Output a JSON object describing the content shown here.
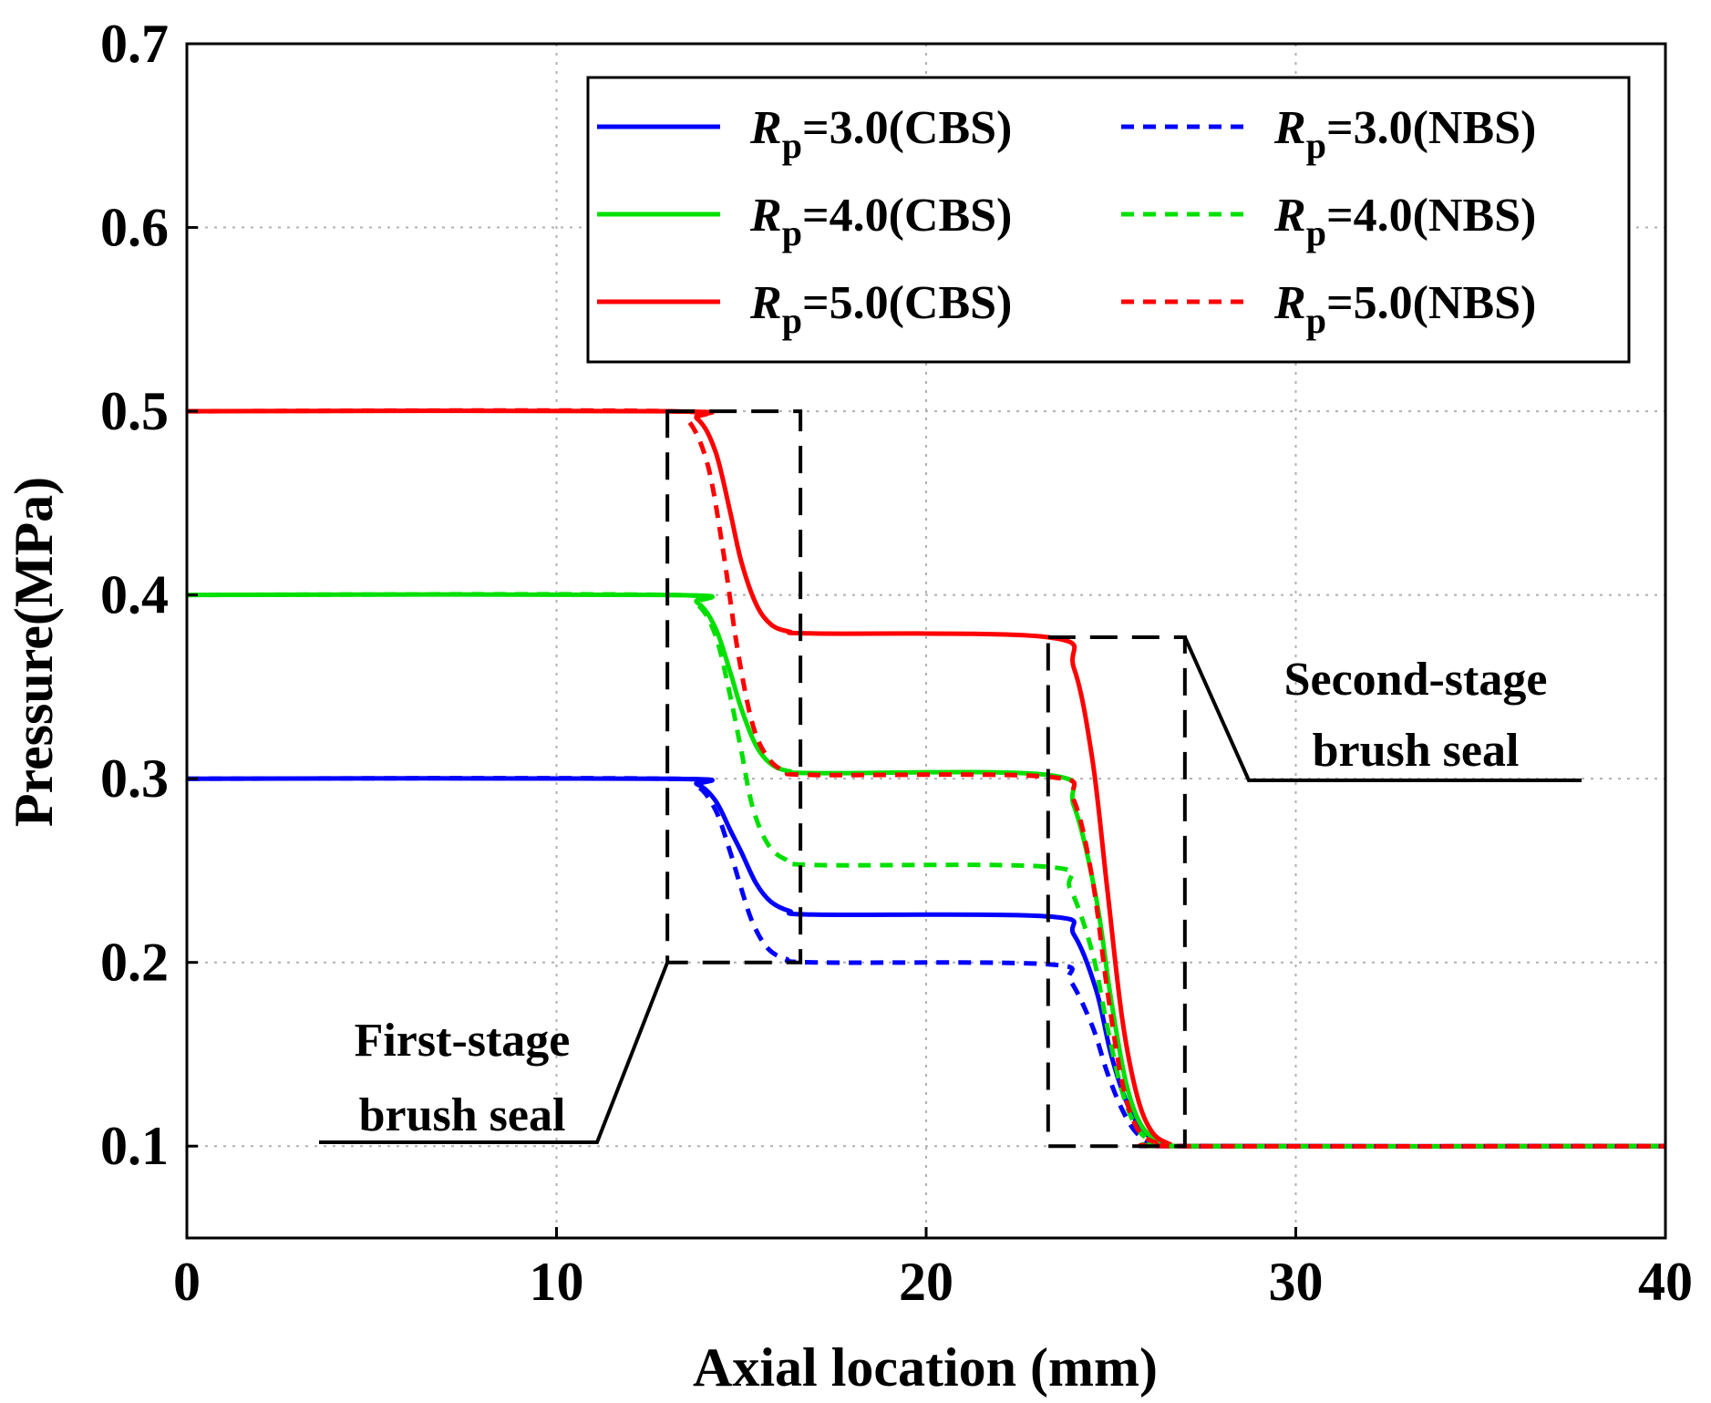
{
  "chart_data": {
    "type": "line",
    "title": "",
    "xlabel": "Axial location (mm)",
    "ylabel": "Pressure(MPa)",
    "xlim": [
      0,
      40
    ],
    "ylim": [
      0.05,
      0.7
    ],
    "xticks": [
      0,
      10,
      20,
      30,
      40
    ],
    "xtick_labels": [
      "0",
      "10",
      "20",
      "30",
      "40"
    ],
    "yticks": [
      0.1,
      0.2,
      0.3,
      0.4,
      0.5,
      0.6,
      0.7
    ],
    "ytick_labels": [
      "0.1",
      "0.2",
      "0.3",
      "0.4",
      "0.5",
      "0.6",
      "0.7"
    ],
    "grid": true,
    "legend_position": "top-right",
    "series": [
      {
        "name": "Rp=3.0(CBS)",
        "label_main": "R",
        "label_sub": "p",
        "label_rest": "=3.0(CBS)",
        "color": "#0000ff",
        "style": "solid",
        "x": [
          0,
          13,
          13.8,
          14.3,
          14.7,
          15.0,
          15.4,
          15.8,
          16.3,
          17,
          23.3,
          24.0,
          24.6,
          25.0,
          25.4,
          25.8,
          26.3,
          27,
          40
        ],
        "y": [
          0.3,
          0.3,
          0.297,
          0.288,
          0.272,
          0.26,
          0.243,
          0.233,
          0.228,
          0.226,
          0.225,
          0.215,
          0.185,
          0.15,
          0.125,
          0.11,
          0.102,
          0.1,
          0.1
        ]
      },
      {
        "name": "Rp=4.0(CBS)",
        "label_main": "R",
        "label_sub": "p",
        "label_rest": "=4.0(CBS)",
        "color": "#00e000",
        "style": "solid",
        "x": [
          0,
          13,
          13.8,
          14.3,
          14.7,
          15.0,
          15.4,
          15.8,
          16.3,
          17,
          23.3,
          24.0,
          24.6,
          25.0,
          25.4,
          25.8,
          26.3,
          27,
          40
        ],
        "y": [
          0.4,
          0.4,
          0.396,
          0.382,
          0.358,
          0.338,
          0.318,
          0.308,
          0.304,
          0.303,
          0.302,
          0.285,
          0.235,
          0.18,
          0.135,
          0.112,
          0.103,
          0.1,
          0.1
        ]
      },
      {
        "name": "Rp=5.0(CBS)",
        "label_main": "R",
        "label_sub": "p",
        "label_rest": "=5.0(CBS)",
        "color": "#ff0000",
        "style": "solid",
        "x": [
          0,
          13,
          13.8,
          14.3,
          14.7,
          15.0,
          15.4,
          15.8,
          16.3,
          17,
          23.3,
          24.0,
          24.5,
          24.9,
          25.3,
          25.7,
          26.1,
          26.6,
          27,
          40
        ],
        "y": [
          0.5,
          0.5,
          0.496,
          0.478,
          0.445,
          0.418,
          0.395,
          0.384,
          0.38,
          0.379,
          0.377,
          0.36,
          0.31,
          0.24,
          0.17,
          0.128,
          0.108,
          0.101,
          0.1,
          0.1
        ]
      },
      {
        "name": "Rp=3.0(NBS)",
        "label_main": "R",
        "label_sub": "p",
        "label_rest": "=3.0(NBS)",
        "color": "#0000ff",
        "style": "dashed",
        "x": [
          0,
          13,
          13.8,
          14.3,
          14.7,
          15.0,
          15.3,
          15.7,
          16.2,
          17,
          23.3,
          23.9,
          24.5,
          24.9,
          25.3,
          25.7,
          26.2,
          27,
          40
        ],
        "y": [
          0.3,
          0.3,
          0.296,
          0.283,
          0.26,
          0.24,
          0.222,
          0.208,
          0.202,
          0.2,
          0.199,
          0.19,
          0.165,
          0.14,
          0.12,
          0.107,
          0.101,
          0.1,
          0.1
        ]
      },
      {
        "name": "Rp=4.0(NBS)",
        "label_main": "R",
        "label_sub": "p",
        "label_rest": "=4.0(NBS)",
        "color": "#00e000",
        "style": "dashed",
        "x": [
          0,
          13,
          13.8,
          14.3,
          14.7,
          15.0,
          15.3,
          15.7,
          16.2,
          17,
          23.3,
          23.9,
          24.5,
          24.9,
          25.3,
          25.7,
          26.2,
          27,
          40
        ],
        "y": [
          0.4,
          0.4,
          0.395,
          0.378,
          0.345,
          0.315,
          0.285,
          0.265,
          0.256,
          0.253,
          0.252,
          0.24,
          0.205,
          0.165,
          0.13,
          0.11,
          0.102,
          0.1,
          0.1
        ]
      },
      {
        "name": "Rp=5.0(NBS)",
        "label_main": "R",
        "label_sub": "p",
        "label_rest": "=5.0(NBS)",
        "color": "#ff0000",
        "style": "dashed",
        "x": [
          0,
          13,
          13.6,
          14.1,
          14.5,
          14.9,
          15.3,
          15.7,
          16.2,
          17,
          23.3,
          24.0,
          24.5,
          24.9,
          25.3,
          25.7,
          26.2,
          27,
          40
        ],
        "y": [
          0.5,
          0.5,
          0.494,
          0.47,
          0.425,
          0.37,
          0.33,
          0.312,
          0.304,
          0.302,
          0.301,
          0.288,
          0.245,
          0.185,
          0.135,
          0.11,
          0.102,
          0.1,
          0.1
        ]
      }
    ],
    "annotations": [
      {
        "id": "first",
        "lines": [
          "First-stage",
          "brush seal"
        ],
        "box": {
          "x": [
            13,
            16.6
          ],
          "y": [
            0.2,
            0.5
          ]
        }
      },
      {
        "id": "second",
        "lines": [
          "Second-stage",
          "brush seal"
        ],
        "box": {
          "x": [
            23.3,
            27.0
          ],
          "y": [
            0.1,
            0.377
          ]
        }
      }
    ]
  }
}
